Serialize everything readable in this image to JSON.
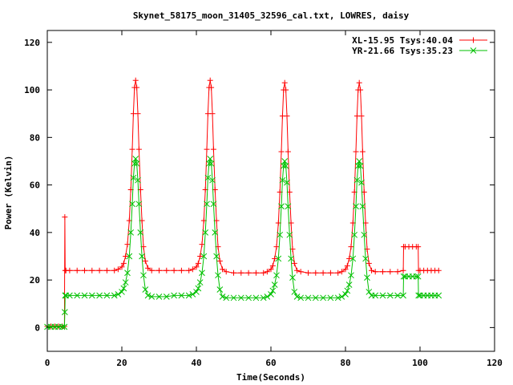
{
  "chart_data": {
    "type": "line",
    "title": "Skynet_58175_moon_31405_32596_cal.txt, LOWRES, daisy",
    "xlabel": "Time(Seconds)",
    "ylabel": "Power (Kelvin)",
    "xlim": [
      0,
      120
    ],
    "ylim": [
      -10,
      125
    ],
    "xticks": [
      0,
      20,
      40,
      60,
      80,
      100,
      120
    ],
    "yticks": [
      0,
      20,
      40,
      60,
      80,
      100,
      120
    ],
    "grid": false,
    "legend_position": "top-right",
    "series": [
      {
        "name": "XL-15.95 Tsys:40.04",
        "color": "#ff0000",
        "marker": "plus",
        "x": [
          0,
          1,
          2,
          3,
          4,
          4.6,
          4.7,
          4.8,
          5,
          6,
          8,
          10,
          12,
          14,
          16,
          18,
          19,
          20,
          20.5,
          21,
          21.5,
          22,
          22.4,
          22.8,
          23.1,
          23.4,
          23.7,
          24,
          24.3,
          24.6,
          25,
          25.4,
          25.8,
          26.3,
          27,
          28,
          30,
          32,
          34,
          36,
          38,
          39,
          40,
          40.5,
          41,
          41.5,
          42,
          42.4,
          42.8,
          43.1,
          43.4,
          43.7,
          44,
          44.3,
          44.6,
          45,
          45.4,
          45.8,
          46.3,
          47,
          48,
          50,
          52,
          54,
          56,
          58,
          59,
          60,
          60.5,
          61,
          61.5,
          62,
          62.4,
          62.8,
          63.1,
          63.4,
          63.7,
          64,
          64.3,
          64.6,
          65,
          65.4,
          65.8,
          66.3,
          67,
          68,
          70,
          72,
          74,
          76,
          78,
          79,
          80,
          80.5,
          81,
          81.5,
          82,
          82.4,
          82.8,
          83.1,
          83.4,
          83.7,
          84,
          84.3,
          84.6,
          85,
          85.4,
          85.8,
          86.3,
          87,
          88,
          90,
          92,
          94,
          95.5,
          95.6,
          96,
          97,
          98,
          99,
          99.5,
          99.6,
          100,
          101,
          102,
          103,
          104,
          105
        ],
        "y": [
          0.5,
          0.5,
          0.5,
          0.5,
          0.5,
          0.5,
          46.5,
          24,
          24,
          24,
          24,
          24,
          24,
          24,
          24,
          24,
          24.5,
          25.5,
          27,
          30,
          35,
          45,
          58,
          75,
          90,
          101,
          104,
          101,
          90,
          75,
          58,
          45,
          34,
          28,
          25,
          24,
          24,
          24,
          24,
          24,
          24,
          24.5,
          25.5,
          27,
          30,
          35,
          45,
          58,
          75,
          90,
          101,
          104,
          101,
          90,
          75,
          58,
          45,
          34,
          28,
          24.5,
          23.5,
          23,
          23,
          23,
          23,
          23,
          23.5,
          24.5,
          26,
          29,
          34,
          44,
          57,
          74,
          89,
          100,
          103,
          100,
          89,
          74,
          57,
          44,
          33,
          27,
          24,
          23.5,
          23,
          23,
          23,
          23,
          23,
          23.5,
          24.5,
          26,
          29,
          34,
          44,
          57,
          74,
          89,
          100,
          103,
          100,
          89,
          74,
          57,
          44,
          33,
          27,
          24,
          23.5,
          23.5,
          23.5,
          23.5,
          24,
          34,
          34,
          34,
          34,
          34,
          34,
          24,
          24,
          24,
          24,
          24,
          24,
          24
        ]
      },
      {
        "name": "YR-21.66 Tsys:35.23",
        "color": "#00c000",
        "marker": "cross",
        "x": [
          0,
          1,
          2,
          3,
          4,
          4.6,
          4.7,
          4.8,
          5,
          6,
          8,
          10,
          12,
          14,
          16,
          18,
          19,
          20,
          20.5,
          21,
          21.5,
          22,
          22.4,
          22.8,
          23.1,
          23.4,
          23.7,
          24,
          24.3,
          24.6,
          25,
          25.4,
          25.8,
          26.3,
          27,
          28,
          30,
          32,
          34,
          36,
          38,
          39,
          40,
          40.5,
          41,
          41.5,
          42,
          42.4,
          42.8,
          43.1,
          43.4,
          43.7,
          44,
          44.3,
          44.6,
          45,
          45.4,
          45.8,
          46.3,
          47,
          48,
          50,
          52,
          54,
          56,
          58,
          59,
          60,
          60.5,
          61,
          61.5,
          62,
          62.4,
          62.8,
          63.1,
          63.4,
          63.7,
          64,
          64.3,
          64.6,
          65,
          65.4,
          65.8,
          66.3,
          67,
          68,
          70,
          72,
          74,
          76,
          78,
          79,
          80,
          80.5,
          81,
          81.5,
          82,
          82.4,
          82.8,
          83.1,
          83.4,
          83.7,
          84,
          84.3,
          84.6,
          85,
          85.4,
          85.8,
          86.3,
          87,
          88,
          90,
          92,
          94,
          95.5,
          95.6,
          96,
          97,
          98,
          99,
          99.5,
          99.6,
          100,
          101,
          102,
          103,
          104,
          105
        ],
        "y": [
          0.3,
          0.3,
          0.3,
          0.3,
          0.3,
          0.3,
          6.5,
          13.5,
          13.5,
          13.5,
          13.5,
          13.5,
          13.5,
          13.5,
          13.5,
          13.5,
          14,
          15,
          16.5,
          19,
          23,
          30,
          40,
          52,
          63,
          69,
          71,
          69,
          62,
          52,
          40,
          30,
          22,
          16,
          13.5,
          13,
          13,
          13,
          13.5,
          13.5,
          13.5,
          14,
          15,
          16.5,
          19,
          23,
          30,
          40,
          52,
          63,
          69,
          71,
          69,
          62,
          52,
          40,
          30,
          22,
          16,
          13,
          12.5,
          12.5,
          12.5,
          12.5,
          12.5,
          12.5,
          13,
          14,
          15.5,
          18,
          22,
          29,
          39,
          51,
          62,
          68,
          70,
          68,
          61,
          51,
          39,
          29,
          21,
          15,
          13,
          12.5,
          12.5,
          12.5,
          12.5,
          12.5,
          12.5,
          13,
          14,
          15.5,
          18,
          22,
          29,
          39,
          51,
          62,
          68,
          70,
          68,
          61,
          51,
          39,
          29,
          21,
          15,
          13.5,
          13.5,
          13.5,
          13.5,
          13.5,
          13.5,
          21.5,
          21.5,
          21.5,
          21.5,
          21.5,
          21.5,
          13.5,
          13.5,
          13.5,
          13.5,
          13.5,
          13.5,
          13.5
        ]
      }
    ]
  }
}
